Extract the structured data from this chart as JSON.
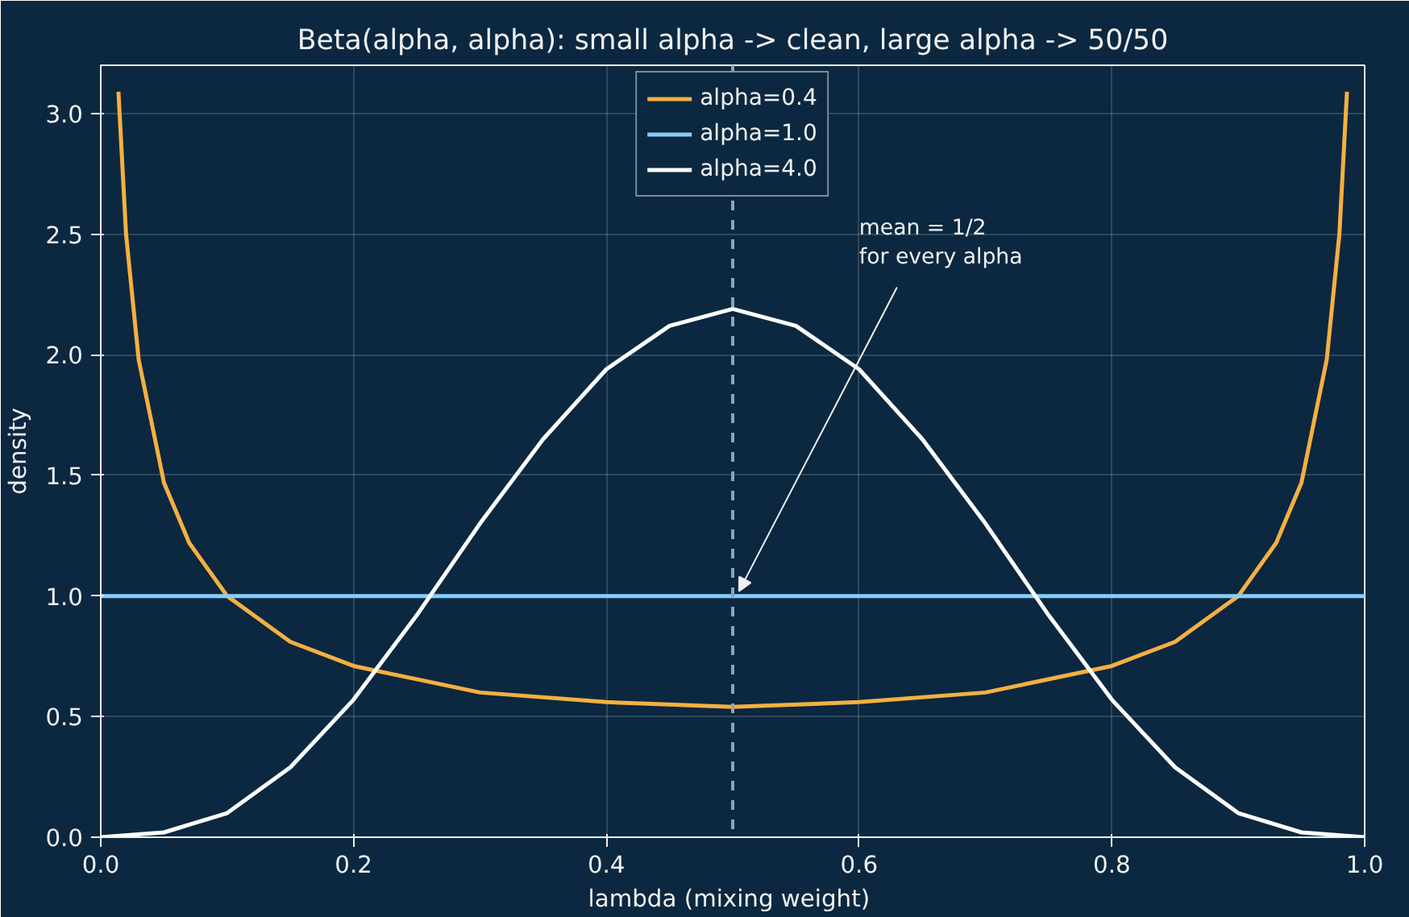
{
  "chart_data": {
    "type": "line",
    "title": "Beta(alpha, alpha): small alpha -> clean, large alpha -> 50/50",
    "xlabel": "lambda  (mixing weight)",
    "ylabel": "density",
    "series": [
      {
        "name": "alpha=0.4",
        "color": "#f5b041",
        "x": [
          0.014,
          0.02,
          0.03,
          0.05,
          0.07,
          0.1,
          0.15,
          0.2,
          0.3,
          0.4,
          0.5,
          0.6,
          0.7,
          0.8,
          0.85,
          0.9,
          0.93,
          0.95,
          0.97,
          0.98,
          0.986
        ],
        "values": [
          3.09,
          2.5,
          1.98,
          1.47,
          1.22,
          1.0,
          0.81,
          0.71,
          0.6,
          0.56,
          0.54,
          0.56,
          0.6,
          0.71,
          0.81,
          1.0,
          1.22,
          1.47,
          1.98,
          2.5,
          3.09
        ]
      },
      {
        "name": "alpha=1.0",
        "color": "#87cefa",
        "x": [
          0.0,
          1.0
        ],
        "values": [
          1.0,
          1.0
        ]
      },
      {
        "name": "alpha=4.0",
        "color": "#ffffff",
        "x": [
          0.0,
          0.05,
          0.1,
          0.15,
          0.2,
          0.25,
          0.3,
          0.35,
          0.4,
          0.45,
          0.5,
          0.55,
          0.6,
          0.65,
          0.7,
          0.75,
          0.8,
          0.85,
          0.9,
          0.95,
          1.0
        ],
        "values": [
          0.0,
          0.02,
          0.1,
          0.29,
          0.57,
          0.92,
          1.3,
          1.65,
          1.94,
          2.12,
          2.19,
          2.12,
          1.94,
          1.65,
          1.3,
          0.92,
          0.57,
          0.29,
          0.1,
          0.02,
          0.0
        ]
      }
    ],
    "xlim": [
      0.0,
      1.0
    ],
    "ylim": [
      0.0,
      3.2
    ],
    "xticks": [
      {
        "value": 0.0,
        "label": "0.0"
      },
      0.2,
      0.4,
      0.6,
      0.8,
      {
        "value": 1.0,
        "label": "1.0"
      }
    ],
    "yticks": [
      {
        "value": 0.0,
        "label": "0.0"
      },
      0.5,
      {
        "value": 1.0,
        "label": "1.0"
      },
      1.5,
      {
        "value": 2.0,
        "label": "2.0"
      },
      2.5,
      {
        "value": 3.0,
        "label": "3.0"
      }
    ],
    "ref_lines": [
      {
        "axis": "x",
        "value": 0.5,
        "color": "#8fa3b5",
        "line_style": "dashed"
      }
    ],
    "annotations": [
      {
        "text": "mean = 1/2\nfor every alpha",
        "x": 0.5,
        "y": 1.0
      }
    ],
    "grid": true,
    "legend": "top",
    "line_style": "solid",
    "marker": "none"
  }
}
